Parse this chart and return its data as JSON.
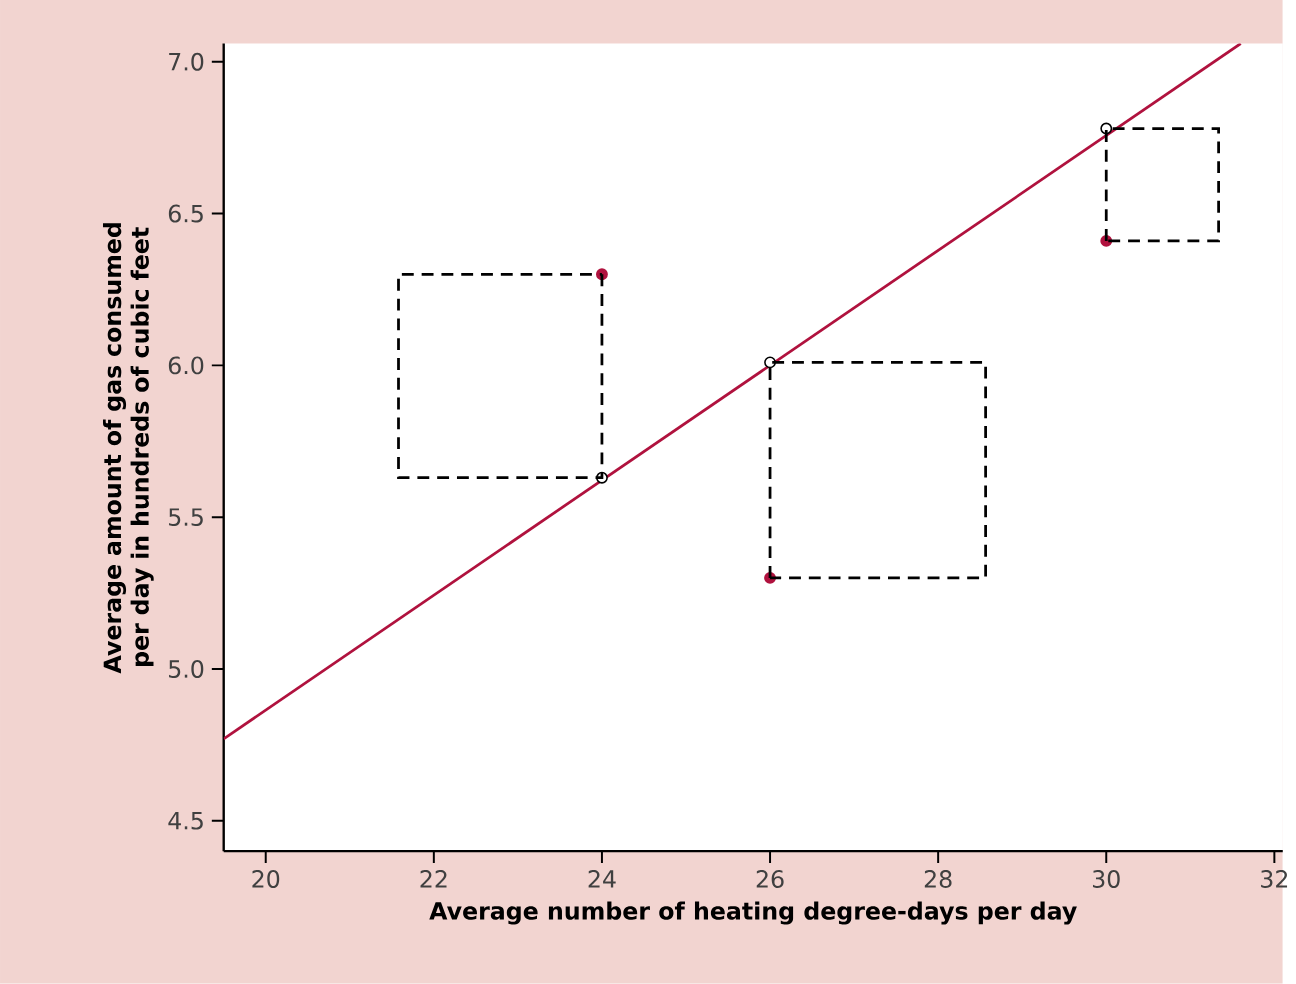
{
  "chart_data": {
    "type": "scatter",
    "xlabel": "Average number of heating degree-days per day",
    "ylabel": "Average amount of gas consumed\nper day in hundreds of cubic feet",
    "xlim": [
      19.5,
      32.1
    ],
    "ylim": [
      4.4,
      7.06
    ],
    "xticks": [
      20,
      22,
      24,
      26,
      28,
      30,
      32
    ],
    "yticks": [
      4.5,
      {
        "value": 5.0,
        "label": "5.0"
      },
      5.5,
      {
        "value": 6.0,
        "label": "6.0"
      },
      6.5,
      {
        "value": 7.0,
        "label": "7.0"
      }
    ],
    "grid": false,
    "series": [
      {
        "type": "line",
        "color": "#b0123e",
        "x": [
          19.5,
          31.6
        ],
        "values": [
          4.77,
          7.06
        ],
        "marker": "none",
        "line_style": "solid"
      },
      {
        "color": "#b0123e",
        "x": [
          24,
          26,
          30
        ],
        "values": [
          6.3,
          5.3,
          6.41
        ],
        "marker": "circle"
      },
      {
        "color": "#ffffff",
        "x": [
          24,
          26,
          30
        ],
        "values": [
          5.63,
          6.01,
          6.78
        ],
        "marker": "circle"
      }
    ]
  }
}
